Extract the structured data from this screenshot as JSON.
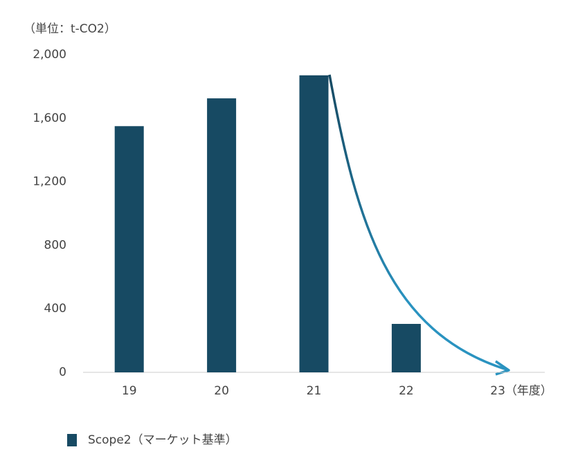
{
  "chart_data": {
    "type": "bar",
    "unit_label": "（単位：t-CO2）",
    "categories": [
      "19",
      "20",
      "21",
      "22",
      "23（年度）"
    ],
    "series": [
      {
        "name": "Scope2（マーケット基準）",
        "color": "#174a63",
        "values": [
          1550,
          1725,
          1870,
          305,
          null
        ]
      }
    ],
    "ylim": [
      0,
      2000
    ],
    "yticks": [
      0,
      400,
      800,
      {
        "value": 1200,
        "label": "1,200"
      },
      {
        "value": 1600,
        "label": "1,600"
      },
      {
        "value": 2000,
        "label": "2,000"
      }
    ],
    "grid": false,
    "legend": "bottom-left"
  }
}
